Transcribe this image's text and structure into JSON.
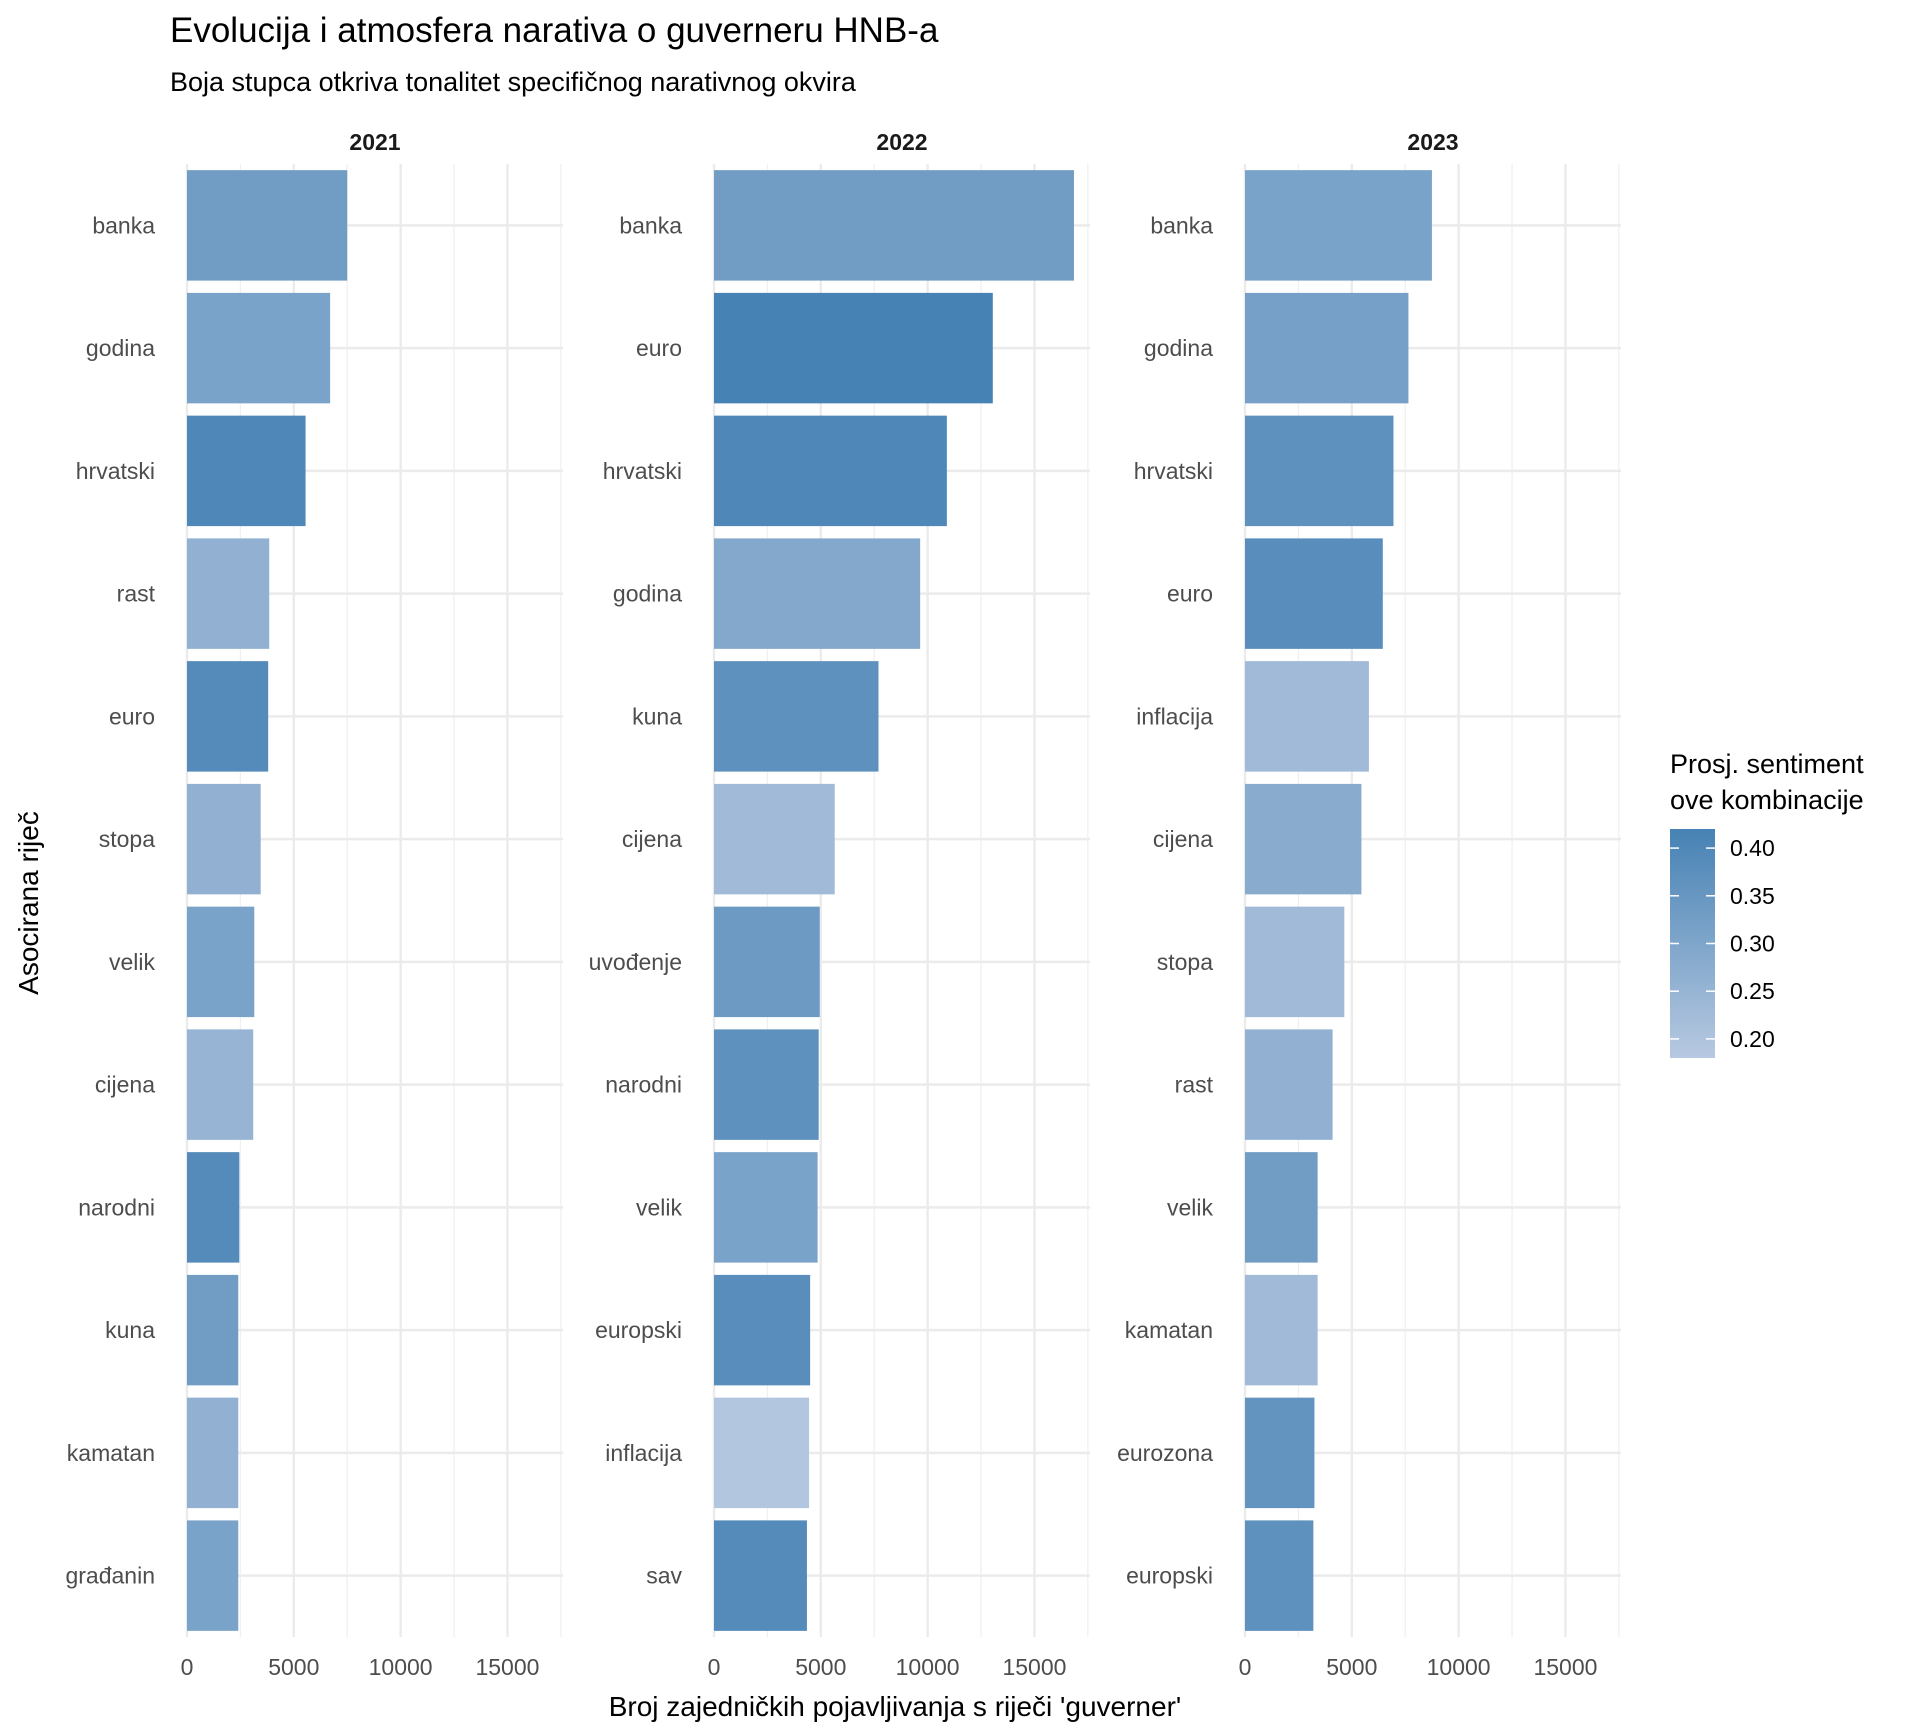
{
  "chart_data": {
    "type": "bar",
    "orientation": "horizontal",
    "title": "Evolucija i atmosfera narativa o guverneru HNB-a",
    "subtitle": "Boja stupca otkriva tonalitet specifičnog narativnog okvira",
    "xlabel": "Broj zajedničkih pojavljivanja s riječi 'guverner'",
    "ylabel": "Asocirana riječ",
    "xlim": [
      0,
      17600
    ],
    "xticks": [
      "0",
      "5000",
      "10000",
      "15000"
    ],
    "grid": true,
    "legend": {
      "title_line1": "Prosj. sentiment",
      "title_line2": "ove kombinacije",
      "position": "right",
      "ticks": [
        "0.40",
        "0.35",
        "0.30",
        "0.25",
        "0.20"
      ],
      "color_low": "#b8c9e1",
      "color_high": "#4682b4",
      "range": [
        0.18,
        0.42
      ]
    },
    "panels": [
      {
        "label": "2021",
        "categories": [
          "banka",
          "godina",
          "hrvatski",
          "rast",
          "euro",
          "stopa",
          "velik",
          "cijena",
          "narodni",
          "kuna",
          "kamatan",
          "građanin"
        ],
        "values": [
          7500,
          6700,
          5550,
          3850,
          3800,
          3450,
          3150,
          3100,
          2450,
          2400,
          2400,
          2400
        ],
        "sentiment": [
          0.33,
          0.31,
          0.4,
          0.26,
          0.39,
          0.26,
          0.31,
          0.25,
          0.39,
          0.33,
          0.26,
          0.31
        ]
      },
      {
        "label": "2022",
        "categories": [
          "banka",
          "euro",
          "hrvatski",
          "godina",
          "kuna",
          "cijena",
          "uvođenje",
          "narodni",
          "velik",
          "europski",
          "inflacija",
          "sav"
        ],
        "values": [
          16850,
          13050,
          10900,
          9650,
          7700,
          5650,
          4950,
          4900,
          4850,
          4500,
          4450,
          4350
        ],
        "sentiment": [
          0.33,
          0.42,
          0.4,
          0.29,
          0.37,
          0.23,
          0.34,
          0.37,
          0.31,
          0.38,
          0.19,
          0.39
        ]
      },
      {
        "label": "2023",
        "categories": [
          "banka",
          "godina",
          "hrvatski",
          "euro",
          "inflacija",
          "cijena",
          "stopa",
          "rast",
          "velik",
          "kamatan",
          "eurozona",
          "europski"
        ],
        "values": [
          8750,
          7650,
          6950,
          6450,
          5800,
          5450,
          4650,
          4100,
          3400,
          3400,
          3250,
          3200
        ],
        "sentiment": [
          0.31,
          0.32,
          0.37,
          0.38,
          0.23,
          0.28,
          0.23,
          0.26,
          0.33,
          0.23,
          0.36,
          0.37
        ]
      }
    ]
  }
}
